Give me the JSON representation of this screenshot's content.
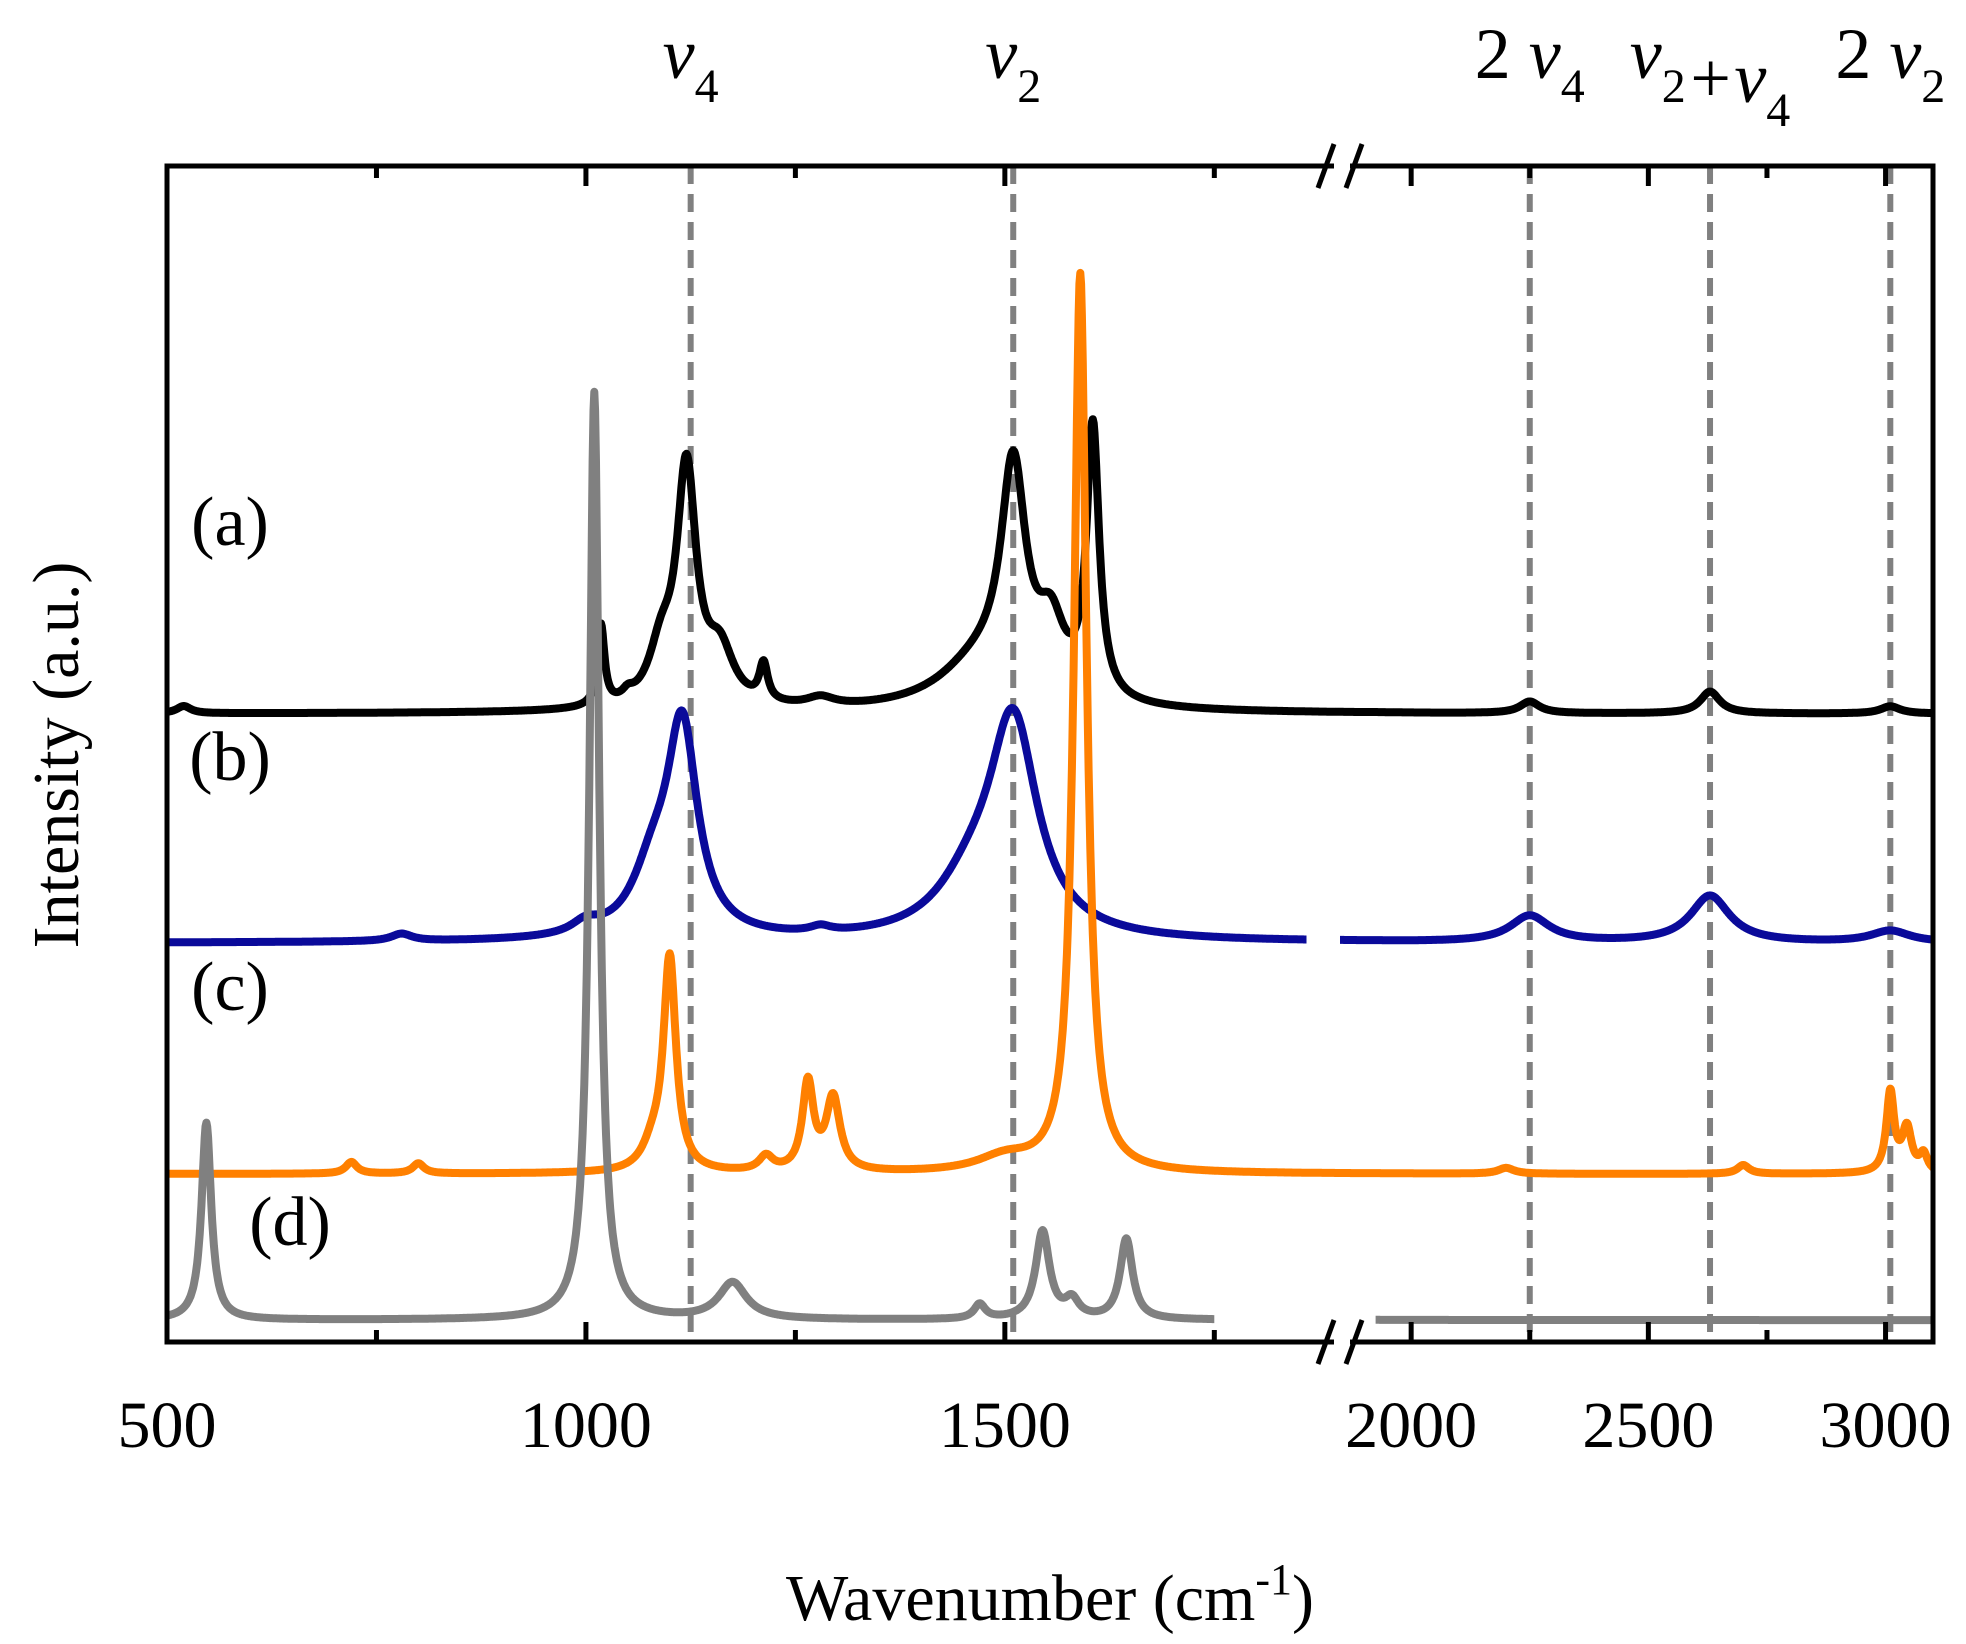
{
  "chart_data": {
    "type": "line",
    "xlabel_main": "Wavenumber (cm",
    "xlabel_sup": "-1",
    "xlabel_close": ")",
    "ylabel": "Intensity (a.u.)",
    "x_break": "//",
    "segments": [
      {
        "xlim": [
          500,
          1900
        ],
        "ticks_labeled": [
          500,
          1000,
          1500
        ],
        "ticks_minor": [
          750,
          1250,
          1750
        ]
      },
      {
        "xlim": [
          1850,
          3100
        ],
        "ticks_labeled": [
          2000,
          2500,
          3000
        ],
        "ticks_minor": [
          2250,
          2750
        ]
      }
    ],
    "tick_labels": [
      "500",
      "1000",
      "1500",
      "2000",
      "2500",
      "3000"
    ],
    "mode_labels": [
      {
        "prefix": "",
        "parts": [
          [
            "ν",
            "4"
          ]
        ],
        "x": 1125
      },
      {
        "prefix": "",
        "parts": [
          [
            "ν",
            "2"
          ]
        ],
        "x": 1510
      },
      {
        "prefix": "2",
        "parts": [
          [
            "ν",
            "4"
          ]
        ],
        "x": 2250
      },
      {
        "prefix": "",
        "parts": [
          [
            "ν",
            "2"
          ],
          [
            "+ν",
            "4"
          ]
        ],
        "x": 2630
      },
      {
        "prefix": "2",
        "parts": [
          [
            "ν",
            "2"
          ]
        ],
        "x": 3010
      }
    ],
    "guide_lines_x": [
      1125,
      1510,
      2250,
      2630,
      3010
    ],
    "colors": {
      "a": "#000000",
      "b": "#0a0a9a",
      "c": "#ff8000",
      "d": "#808080",
      "guide": "#808080"
    },
    "series": [
      {
        "name": "(a)",
        "label": "(a)",
        "baseline": 4.15,
        "peaks": [
          {
            "x": 520,
            "h": 0.05,
            "w": 10
          },
          {
            "x": 1018,
            "h": 0.55,
            "w": 5
          },
          {
            "x": 1050,
            "h": 0.05,
            "w": 8
          },
          {
            "x": 1090,
            "h": 0.35,
            "w": 18
          },
          {
            "x": 1120,
            "h": 1.6,
            "w": 14
          },
          {
            "x": 1160,
            "h": 0.35,
            "w": 20
          },
          {
            "x": 1212,
            "h": 0.25,
            "w": 6
          },
          {
            "x": 1280,
            "h": 0.06,
            "w": 20
          },
          {
            "x": 1470,
            "h": 0.3,
            "w": 60
          },
          {
            "x": 1510,
            "h": 1.5,
            "w": 18
          },
          {
            "x": 1555,
            "h": 0.45,
            "w": 20
          },
          {
            "x": 1605,
            "h": 1.85,
            "w": 9
          },
          {
            "x": 2250,
            "h": 0.08,
            "w": 25
          },
          {
            "x": 2630,
            "h": 0.15,
            "w": 25
          },
          {
            "x": 3010,
            "h": 0.05,
            "w": 25
          }
        ],
        "xmax_drawn": 3100
      },
      {
        "name": "(b)",
        "label": "(b)",
        "baseline": 2.58,
        "peaks": [
          {
            "x": 780,
            "h": 0.05,
            "w": 15
          },
          {
            "x": 1000,
            "h": 0.08,
            "w": 20
          },
          {
            "x": 1080,
            "h": 0.4,
            "w": 30
          },
          {
            "x": 1115,
            "h": 1.4,
            "w": 22
          },
          {
            "x": 1280,
            "h": 0.04,
            "w": 15
          },
          {
            "x": 1460,
            "h": 0.3,
            "w": 50
          },
          {
            "x": 1510,
            "h": 1.45,
            "w": 35
          },
          {
            "x": 2250,
            "h": 0.18,
            "w": 50
          },
          {
            "x": 2630,
            "h": 0.32,
            "w": 50
          },
          {
            "x": 3010,
            "h": 0.08,
            "w": 50
          }
        ],
        "gap": [
          1860,
          1900
        ],
        "xmax_drawn": 3100
      },
      {
        "name": "(c)",
        "label": "(c)",
        "baseline": 1.0,
        "peaks": [
          {
            "x": 720,
            "h": 0.08,
            "w": 8
          },
          {
            "x": 800,
            "h": 0.07,
            "w": 8
          },
          {
            "x": 1080,
            "h": 0.15,
            "w": 15
          },
          {
            "x": 1100,
            "h": 1.45,
            "w": 9
          },
          {
            "x": 1215,
            "h": 0.1,
            "w": 10
          },
          {
            "x": 1265,
            "h": 0.6,
            "w": 8
          },
          {
            "x": 1295,
            "h": 0.5,
            "w": 10
          },
          {
            "x": 1500,
            "h": 0.1,
            "w": 40
          },
          {
            "x": 1590,
            "h": 6.15,
            "w": 9
          },
          {
            "x": 2200,
            "h": 0.04,
            "w": 20
          },
          {
            "x": 2700,
            "h": 0.06,
            "w": 15
          },
          {
            "x": 3010,
            "h": 0.55,
            "w": 10
          },
          {
            "x": 3045,
            "h": 0.3,
            "w": 12
          },
          {
            "x": 3080,
            "h": 0.12,
            "w": 10
          }
        ],
        "xmax_drawn": 3100
      },
      {
        "name": "(d)",
        "label": "(d)",
        "baseline": 0.0,
        "peaks": [
          {
            "x": 547,
            "h": 1.35,
            "w": 7
          },
          {
            "x": 1010,
            "h": 6.35,
            "w": 7
          },
          {
            "x": 1175,
            "h": 0.25,
            "w": 20
          },
          {
            "x": 1470,
            "h": 0.1,
            "w": 8
          },
          {
            "x": 1545,
            "h": 0.6,
            "w": 10
          },
          {
            "x": 1580,
            "h": 0.12,
            "w": 10
          },
          {
            "x": 1645,
            "h": 0.55,
            "w": 9
          }
        ],
        "gap": [
          1750,
          1925
        ],
        "xmax_drawn": 3100
      }
    ],
    "ylim": [
      -0.15,
      7.9
    ],
    "grid": false,
    "legend": "none"
  }
}
